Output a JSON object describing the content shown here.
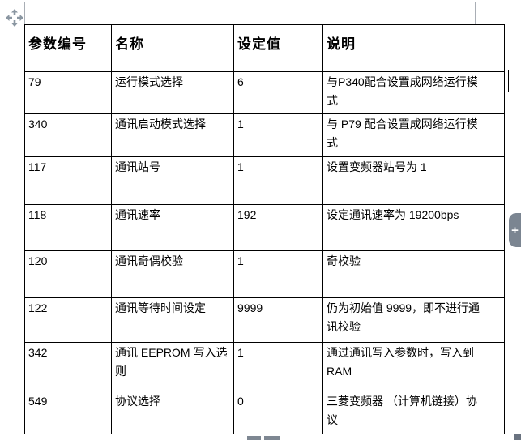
{
  "window": {
    "background": "#ffffff"
  },
  "table": {
    "headers": [
      "参数编号",
      "名称",
      "设定值",
      "说明"
    ],
    "rows": [
      {
        "param": "79",
        "name": "运行模式选择",
        "value": "6",
        "desc": "与P340配合设置成网络运行模\n式"
      },
      {
        "param": "340",
        "name": "通讯启动模式选择",
        "value": "1",
        "desc": "与 P79 配合设置成网络运行模\n式"
      },
      {
        "param": "117",
        "name": "通讯站号",
        "value": "1",
        "desc": "设置变频器站号为 1"
      },
      {
        "param": "118",
        "name": "通讯速率",
        "value": "192",
        "desc": "设定通讯速率为 19200bps"
      },
      {
        "param": "120",
        "name": "通讯奇偶校验",
        "value": "1",
        "desc": "奇校验"
      },
      {
        "param": "122",
        "name": "通讯等待时间设定",
        "value": "9999",
        "desc": "仍为初始值 9999，即不进行通\n讯校验"
      },
      {
        "param": "342",
        "name": "通讯 EEPROM 写入选\n则",
        "value": "1",
        "desc": "通过通讯写入参数时，写入到\nRAM"
      },
      {
        "param": "549",
        "name": "协议选择",
        "value": "0",
        "desc": "三菱变频器 （计算机链接）协\n议"
      }
    ]
  },
  "widgets": {
    "expand_tab_label": "+",
    "colors": {
      "widget_gray": "#7b8591",
      "handle_gray": "#8a96a1",
      "corner_gray": "#6a7380",
      "table_border": "#000000"
    }
  }
}
